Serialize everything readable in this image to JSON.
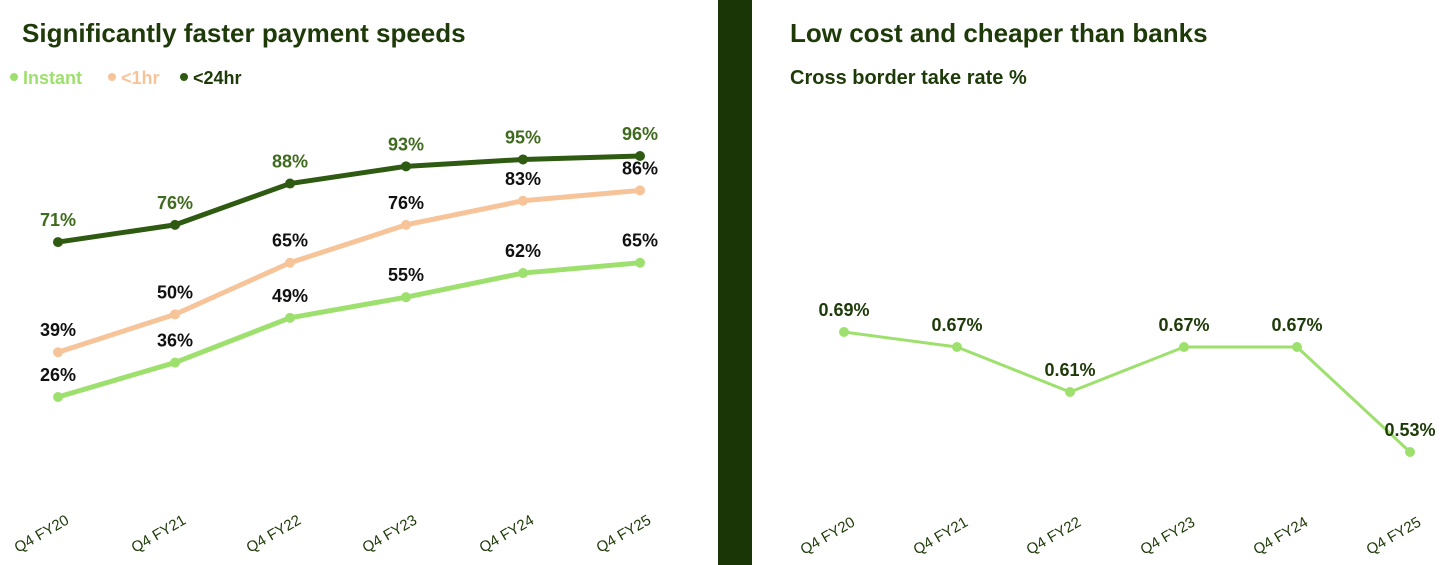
{
  "colors": {
    "instant": "#9ee06e",
    "under_1hr": "#f7c49a",
    "under_24hr": "#2e5a12",
    "title": "#1d3a08",
    "divider": "#1a3506",
    "label_dark": "#111111",
    "label_green": "#3f6b1e"
  },
  "chart_data": [
    {
      "type": "line",
      "title": "Significantly faster payment speeds",
      "categories": [
        "Q4 FY20",
        "Q4 FY21",
        "Q4 FY22",
        "Q4 FY23",
        "Q4 FY24",
        "Q4 FY25"
      ],
      "legend": {
        "position": "top-left"
      },
      "series": [
        {
          "key": "instant",
          "name": "Instant",
          "values": [
            26,
            36,
            49,
            55,
            62,
            65
          ],
          "labels": [
            "26%",
            "36%",
            "49%",
            "55%",
            "62%",
            "65%"
          ]
        },
        {
          "key": "under_1hr",
          "name": "<1hr",
          "values": [
            39,
            50,
            65,
            76,
            83,
            86
          ],
          "labels": [
            "39%",
            "50%",
            "65%",
            "76%",
            "83%",
            "86%"
          ]
        },
        {
          "key": "under_24hr",
          "name": "<24hr",
          "values": [
            71,
            76,
            88,
            93,
            95,
            96
          ],
          "labels": [
            "71%",
            "76%",
            "88%",
            "93%",
            "95%",
            "96%"
          ]
        }
      ],
      "ylim": [
        0,
        100
      ],
      "grid": false
    },
    {
      "type": "line",
      "title": "Low cost and cheaper than banks",
      "subtitle": "Cross border take rate %",
      "categories": [
        "Q4 FY20",
        "Q4 FY21",
        "Q4 FY22",
        "Q4 FY23",
        "Q4 FY24",
        "Q4 FY25"
      ],
      "series": [
        {
          "key": "take_rate",
          "name": "Cross border take rate %",
          "values": [
            0.69,
            0.67,
            0.61,
            0.67,
            0.67,
            0.53
          ],
          "labels": [
            "0.69%",
            "0.67%",
            "0.61%",
            "0.67%",
            "0.67%",
            "0.53%"
          ]
        }
      ],
      "ylim": [
        0.4,
        0.85
      ],
      "grid": false
    }
  ]
}
